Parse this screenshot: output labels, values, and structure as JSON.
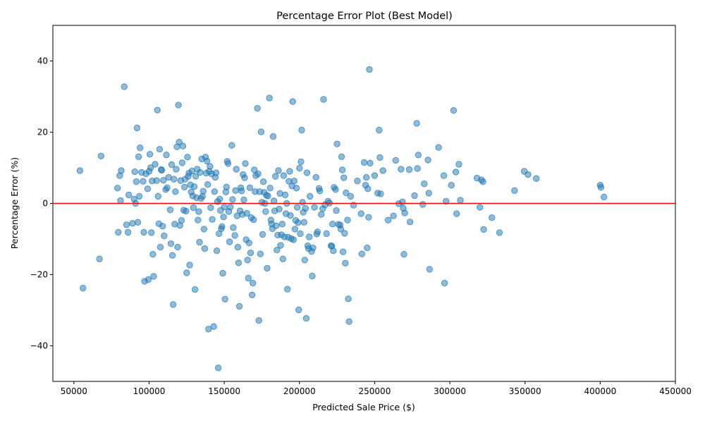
{
  "chart_data": {
    "type": "scatter",
    "title": "Percentage Error Plot (Best Model)",
    "xlabel": "Predicted Sale Price ($)",
    "ylabel": "Percentage Error (%)",
    "xlim": [
      36000,
      450000
    ],
    "ylim": [
      -50,
      50
    ],
    "xticks": [
      50000,
      100000,
      150000,
      200000,
      250000,
      300000,
      350000,
      400000,
      450000
    ],
    "xtick_labels": [
      "50000",
      "100000",
      "150000",
      "200000",
      "250000",
      "300000",
      "350000",
      "400000",
      "450000"
    ],
    "yticks": [
      -40,
      -20,
      0,
      20,
      40
    ],
    "ytick_labels": [
      "−40",
      "−20",
      "0",
      "20",
      "40"
    ],
    "reference_line": {
      "y": 0,
      "color": "#ff0000"
    },
    "point_color": "#1f77b4",
    "grid": false,
    "points": [
      [
        54000,
        9.2
      ],
      [
        56000,
        -23.8
      ],
      [
        67000,
        -15.6
      ],
      [
        68000,
        13.3
      ],
      [
        79000,
        4.3
      ],
      [
        79500,
        -8.1
      ],
      [
        80500,
        7.8
      ],
      [
        81000,
        0.8
      ],
      [
        81500,
        9.2
      ],
      [
        83500,
        32.8
      ],
      [
        85000,
        -6.0
      ],
      [
        86000,
        -8.1
      ],
      [
        86500,
        2.4
      ],
      [
        89000,
        -5.6
      ],
      [
        90000,
        1.2
      ],
      [
        90500,
        8.9
      ],
      [
        91000,
        0.0
      ],
      [
        91500,
        6.1
      ],
      [
        92000,
        21.2
      ],
      [
        92500,
        -5.3
      ],
      [
        93000,
        13.1
      ],
      [
        93500,
        2.0
      ],
      [
        94000,
        15.6
      ],
      [
        95000,
        8.7
      ],
      [
        96000,
        6.2
      ],
      [
        96500,
        -8.1
      ],
      [
        97000,
        -21.9
      ],
      [
        98000,
        8.3
      ],
      [
        99000,
        4.1
      ],
      [
        99500,
        -21.4
      ],
      [
        100000,
        9.0
      ],
      [
        100500,
        13.8
      ],
      [
        101000,
        10.0
      ],
      [
        101500,
        -8.2
      ],
      [
        102000,
        6.3
      ],
      [
        102500,
        -14.3
      ],
      [
        103000,
        -20.5
      ],
      [
        104000,
        11.0
      ],
      [
        105000,
        6.4
      ],
      [
        105500,
        26.2
      ],
      [
        106000,
        2.0
      ],
      [
        106500,
        -5.7
      ],
      [
        107000,
        15.2
      ],
      [
        107500,
        -12.3
      ],
      [
        108000,
        9.5
      ],
      [
        108500,
        9.3
      ],
      [
        109000,
        -6.4
      ],
      [
        109500,
        6.5
      ],
      [
        110000,
        -9.1
      ],
      [
        111000,
        3.9
      ],
      [
        111500,
        13.6
      ],
      [
        112000,
        4.4
      ],
      [
        113000,
        7.3
      ],
      [
        114000,
        -1.8
      ],
      [
        114500,
        -11.3
      ],
      [
        115000,
        10.9
      ],
      [
        115500,
        -14.6
      ],
      [
        116000,
        -28.4
      ],
      [
        116500,
        6.8
      ],
      [
        117000,
        -5.8
      ],
      [
        117500,
        3.3
      ],
      [
        118000,
        9.6
      ],
      [
        118500,
        15.9
      ],
      [
        119000,
        -12.3
      ],
      [
        119500,
        27.6
      ],
      [
        120000,
        17.2
      ],
      [
        120500,
        -6.2
      ],
      [
        121000,
        6.4
      ],
      [
        121500,
        -4.8
      ],
      [
        122000,
        11.4
      ],
      [
        122500,
        16.1
      ],
      [
        123000,
        -1.9
      ],
      [
        123500,
        4.6
      ],
      [
        124000,
        6.8
      ],
      [
        124500,
        -2.2
      ],
      [
        125000,
        -19.5
      ],
      [
        125500,
        13.0
      ],
      [
        126000,
        7.6
      ],
      [
        126500,
        8.5
      ],
      [
        127000,
        -17.3
      ],
      [
        127500,
        5.2
      ],
      [
        128000,
        3.2
      ],
      [
        128500,
        9.1
      ],
      [
        129000,
        2.1
      ],
      [
        129500,
        -1.2
      ],
      [
        130000,
        4.7
      ],
      [
        130500,
        -24.2
      ],
      [
        131000,
        7.6
      ],
      [
        131500,
        1.6
      ],
      [
        132000,
        9.6
      ],
      [
        132500,
        -4.7
      ],
      [
        133000,
        -2.3
      ],
      [
        133500,
        -10.9
      ],
      [
        134000,
        8.7
      ],
      [
        134500,
        1.4
      ],
      [
        135000,
        12.5
      ],
      [
        135500,
        2.0
      ],
      [
        136000,
        3.4
      ],
      [
        136500,
        -7.2
      ],
      [
        137000,
        -12.7
      ],
      [
        137500,
        13.0
      ],
      [
        138000,
        8.5
      ],
      [
        138500,
        11.9
      ],
      [
        139000,
        5.3
      ],
      [
        139500,
        -35.3
      ],
      [
        140000,
        9.0
      ],
      [
        140500,
        10.4
      ],
      [
        141000,
        -1.2
      ],
      [
        141500,
        8.3
      ],
      [
        142000,
        -4.5
      ],
      [
        143000,
        -34.6
      ],
      [
        143500,
        3.3
      ],
      [
        144000,
        7.3
      ],
      [
        144500,
        8.6
      ],
      [
        145000,
        -13.3
      ],
      [
        145500,
        0.5
      ],
      [
        146000,
        -46.2
      ],
      [
        146500,
        -8.5
      ],
      [
        147000,
        1.2
      ],
      [
        147500,
        -2.0
      ],
      [
        148000,
        -7.1
      ],
      [
        148500,
        -6.5
      ],
      [
        149000,
        -19.6
      ],
      [
        149500,
        -3.8
      ],
      [
        150000,
        -1.0
      ],
      [
        150500,
        -26.9
      ],
      [
        151000,
        3.2
      ],
      [
        151500,
        4.6
      ],
      [
        152000,
        11.8
      ],
      [
        152500,
        11.2
      ],
      [
        153000,
        -2.3
      ],
      [
        153500,
        -10.8
      ],
      [
        154000,
        -1.0
      ],
      [
        155000,
        16.3
      ],
      [
        155500,
        1.1
      ],
      [
        156000,
        -6.8
      ],
      [
        157000,
        -9.0
      ],
      [
        157500,
        3.6
      ],
      [
        158000,
        9.6
      ],
      [
        158500,
        -3.5
      ],
      [
        159000,
        -12.3
      ],
      [
        159500,
        -16.7
      ],
      [
        160000,
        -28.9
      ],
      [
        160500,
        -2.1
      ],
      [
        161000,
        4.4
      ],
      [
        161500,
        3.5
      ],
      [
        162000,
        -3.1
      ],
      [
        162500,
        8.1
      ],
      [
        163000,
        1.0
      ],
      [
        163500,
        7.2
      ],
      [
        164000,
        11.2
      ],
      [
        164500,
        -10.2
      ],
      [
        165000,
        -2.8
      ],
      [
        165500,
        -15.9
      ],
      [
        166000,
        -21.0
      ],
      [
        166500,
        -11.1
      ],
      [
        167000,
        4.4
      ],
      [
        167500,
        -13.9
      ],
      [
        168000,
        -4.0
      ],
      [
        168500,
        -25.7
      ],
      [
        169000,
        -22.4
      ],
      [
        169500,
        -4.6
      ],
      [
        170000,
        9.4
      ],
      [
        170500,
        3.3
      ],
      [
        171000,
        7.8
      ],
      [
        172000,
        26.7
      ],
      [
        172500,
        8.3
      ],
      [
        173000,
        -32.9
      ],
      [
        173500,
        3.3
      ],
      [
        174000,
        -14.2
      ],
      [
        174500,
        20.1
      ],
      [
        175000,
        0.3
      ],
      [
        175500,
        -8.7
      ],
      [
        176000,
        6.1
      ],
      [
        176500,
        3.1
      ],
      [
        177000,
        0.0
      ],
      [
        177500,
        -2.3
      ],
      [
        178000,
        2.3
      ],
      [
        178500,
        -18.2
      ],
      [
        179000,
        2.1
      ],
      [
        180000,
        29.6
      ],
      [
        180500,
        4.3
      ],
      [
        181000,
        -4.7
      ],
      [
        181500,
        -5.8
      ],
      [
        182000,
        -7.1
      ],
      [
        182500,
        18.8
      ],
      [
        183000,
        0.7
      ],
      [
        183500,
        -2.1
      ],
      [
        184000,
        7.6
      ],
      [
        184500,
        -6.3
      ],
      [
        185000,
        -13.1
      ],
      [
        185500,
        -8.9
      ],
      [
        186000,
        9.2
      ],
      [
        186500,
        -1.6
      ],
      [
        187000,
        2.8
      ],
      [
        187500,
        -11.8
      ],
      [
        188000,
        -8.8
      ],
      [
        188500,
        -5.8
      ],
      [
        189000,
        -15.6
      ],
      [
        189500,
        7.8
      ],
      [
        190000,
        -9.4
      ],
      [
        190500,
        2.4
      ],
      [
        191000,
        -2.9
      ],
      [
        191500,
        0.0
      ],
      [
        192000,
        -24.1
      ],
      [
        192500,
        -9.5
      ],
      [
        193000,
        6.2
      ],
      [
        193500,
        9.0
      ],
      [
        194000,
        -3.4
      ],
      [
        194500,
        -9.9
      ],
      [
        195000,
        4.9
      ],
      [
        195500,
        28.6
      ],
      [
        196000,
        -10.2
      ],
      [
        196500,
        6.3
      ],
      [
        197000,
        -7.2
      ],
      [
        197500,
        -4.8
      ],
      [
        198000,
        4.3
      ],
      [
        198500,
        -1.1
      ],
      [
        199000,
        -5.4
      ],
      [
        199500,
        -29.9
      ],
      [
        200000,
        9.9
      ],
      [
        200500,
        -8.5
      ],
      [
        201000,
        11.7
      ],
      [
        201500,
        20.6
      ],
      [
        202000,
        0.3
      ],
      [
        202500,
        -2.5
      ],
      [
        203000,
        -5.3
      ],
      [
        203500,
        -15.9
      ],
      [
        204000,
        -1.4
      ],
      [
        204500,
        -32.3
      ],
      [
        205000,
        8.6
      ],
      [
        205500,
        -11.9
      ],
      [
        206000,
        -12.7
      ],
      [
        206500,
        -9.4
      ],
      [
        207000,
        2.0
      ],
      [
        208000,
        -13.5
      ],
      [
        208500,
        -20.4
      ],
      [
        209000,
        -12.5
      ],
      [
        210000,
        -1.1
      ],
      [
        211000,
        7.3
      ],
      [
        211500,
        -8.6
      ],
      [
        212000,
        -8.0
      ],
      [
        213000,
        4.2
      ],
      [
        213500,
        3.5
      ],
      [
        214500,
        -3.1
      ],
      [
        215500,
        -1.5
      ],
      [
        216000,
        29.2
      ],
      [
        217000,
        -0.4
      ],
      [
        218000,
        -8.5
      ],
      [
        219000,
        0.6
      ],
      [
        220000,
        0.1
      ],
      [
        221000,
        -11.9
      ],
      [
        221500,
        -12.0
      ],
      [
        222000,
        -5.8
      ],
      [
        222500,
        -13.3
      ],
      [
        223000,
        4.5
      ],
      [
        224000,
        3.9
      ],
      [
        224500,
        -2.0
      ],
      [
        225000,
        16.7
      ],
      [
        226000,
        -5.9
      ],
      [
        227000,
        -6.1
      ],
      [
        227500,
        -7.2
      ],
      [
        228000,
        13.1
      ],
      [
        228500,
        9.4
      ],
      [
        229000,
        -13.6
      ],
      [
        229500,
        7.2
      ],
      [
        230000,
        -8.4
      ],
      [
        230500,
        -16.8
      ],
      [
        231000,
        3.0
      ],
      [
        232000,
        -4.7
      ],
      [
        232500,
        -26.8
      ],
      [
        233000,
        -33.2
      ],
      [
        234000,
        2.0
      ],
      [
        236000,
        -0.5
      ],
      [
        238500,
        6.3
      ],
      [
        241000,
        -2.9
      ],
      [
        241500,
        -14.2
      ],
      [
        243000,
        11.5
      ],
      [
        244000,
        5.1
      ],
      [
        244500,
        7.3
      ],
      [
        245000,
        -12.5
      ],
      [
        245500,
        4.1
      ],
      [
        246000,
        -3.9
      ],
      [
        246500,
        37.6
      ],
      [
        247000,
        11.3
      ],
      [
        250000,
        7.8
      ],
      [
        252000,
        2.9
      ],
      [
        253000,
        20.6
      ],
      [
        253500,
        12.9
      ],
      [
        254000,
        2.7
      ],
      [
        255500,
        9.2
      ],
      [
        259000,
        -4.7
      ],
      [
        262500,
        -3.5
      ],
      [
        264000,
        12.1
      ],
      [
        266000,
        -0.1
      ],
      [
        267500,
        9.6
      ],
      [
        268500,
        0.4
      ],
      [
        269000,
        -1.4
      ],
      [
        269500,
        -14.3
      ],
      [
        270000,
        -2.7
      ],
      [
        273000,
        9.5
      ],
      [
        273500,
        -5.2
      ],
      [
        276500,
        2.2
      ],
      [
        278000,
        22.5
      ],
      [
        278500,
        9.8
      ],
      [
        279000,
        13.6
      ],
      [
        282000,
        -0.3
      ],
      [
        283000,
        5.5
      ],
      [
        285500,
        12.2
      ],
      [
        286000,
        2.9
      ],
      [
        286500,
        -18.5
      ],
      [
        292500,
        15.7
      ],
      [
        296000,
        7.8
      ],
      [
        296500,
        -22.4
      ],
      [
        297500,
        0.6
      ],
      [
        301000,
        5.1
      ],
      [
        302500,
        26.1
      ],
      [
        304000,
        8.8
      ],
      [
        304500,
        -2.9
      ],
      [
        306000,
        11.0
      ],
      [
        307000,
        0.9
      ],
      [
        318000,
        7.1
      ],
      [
        320000,
        -1.1
      ],
      [
        321000,
        6.6
      ],
      [
        322000,
        6.1
      ],
      [
        322500,
        -7.3
      ],
      [
        328000,
        -4.0
      ],
      [
        333000,
        -8.2
      ],
      [
        343000,
        3.6
      ],
      [
        349500,
        9.0
      ],
      [
        352000,
        8.1
      ],
      [
        357500,
        7.0
      ],
      [
        400000,
        5.1
      ],
      [
        400500,
        4.5
      ],
      [
        402500,
        1.8
      ]
    ]
  }
}
